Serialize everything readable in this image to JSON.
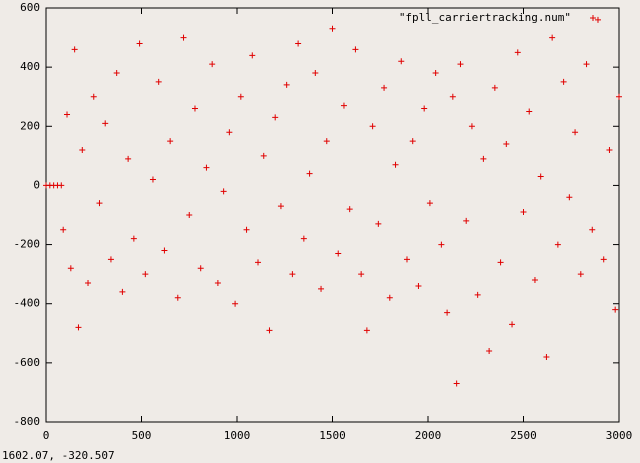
{
  "chart_data": {
    "type": "scatter",
    "status": "1602.07, -320.507",
    "xlim": [
      0,
      3000
    ],
    "xticks": [
      0,
      500,
      1000,
      1500,
      2000,
      2500,
      3000
    ],
    "ylim": [
      -800,
      600
    ],
    "yticks": [
      -800,
      -600,
      -400,
      -200,
      0,
      200,
      400,
      600
    ],
    "grid": false,
    "legend": "top-right",
    "series": [
      {
        "name": "\"fpll_carriertracking.num\"",
        "color": "#e00000",
        "x": [
          0,
          20,
          40,
          60,
          80,
          90,
          110,
          130,
          150,
          170,
          190,
          220,
          250,
          280,
          310,
          340,
          370,
          400,
          430,
          460,
          490,
          520,
          560,
          590,
          620,
          650,
          690,
          720,
          750,
          780,
          810,
          840,
          870,
          900,
          930,
          960,
          990,
          1020,
          1050,
          1080,
          1110,
          1140,
          1170,
          1200,
          1230,
          1260,
          1290,
          1320,
          1350,
          1380,
          1410,
          1440,
          1470,
          1500,
          1530,
          1560,
          1590,
          1620,
          1650,
          1680,
          1710,
          1740,
          1770,
          1800,
          1830,
          1860,
          1890,
          1920,
          1950,
          1980,
          2010,
          2040,
          2070,
          2100,
          2130,
          2150,
          2170,
          2200,
          2230,
          2260,
          2290,
          2320,
          2350,
          2380,
          2410,
          2440,
          2470,
          2500,
          2530,
          2560,
          2590,
          2620,
          2650,
          2680,
          2710,
          2740,
          2770,
          2800,
          2830,
          2860,
          2890,
          2920,
          2950,
          2980,
          3000
        ],
        "values": [
          0,
          0,
          0,
          0,
          0,
          -150,
          240,
          -280,
          460,
          -480,
          120,
          -330,
          300,
          -60,
          210,
          -250,
          380,
          -360,
          90,
          -180,
          480,
          -300,
          20,
          350,
          -220,
          150,
          -380,
          500,
          -100,
          260,
          -280,
          60,
          410,
          -330,
          -20,
          180,
          -400,
          300,
          -150,
          440,
          -260,
          100,
          -490,
          230,
          -70,
          340,
          -300,
          480,
          -180,
          40,
          380,
          -350,
          150,
          530,
          -230,
          270,
          -80,
          460,
          -300,
          -490,
          200,
          -130,
          330,
          -380,
          70,
          420,
          -250,
          150,
          -340,
          260,
          -60,
          380,
          -200,
          -430,
          300,
          -670,
          410,
          -120,
          200,
          -370,
          90,
          -560,
          330,
          -260,
          140,
          -470,
          450,
          -90,
          250,
          -320,
          30,
          -580,
          500,
          -200,
          350,
          -40,
          180,
          -300,
          410,
          -150,
          560,
          -250,
          120,
          -420,
          300
        ]
      }
    ]
  }
}
